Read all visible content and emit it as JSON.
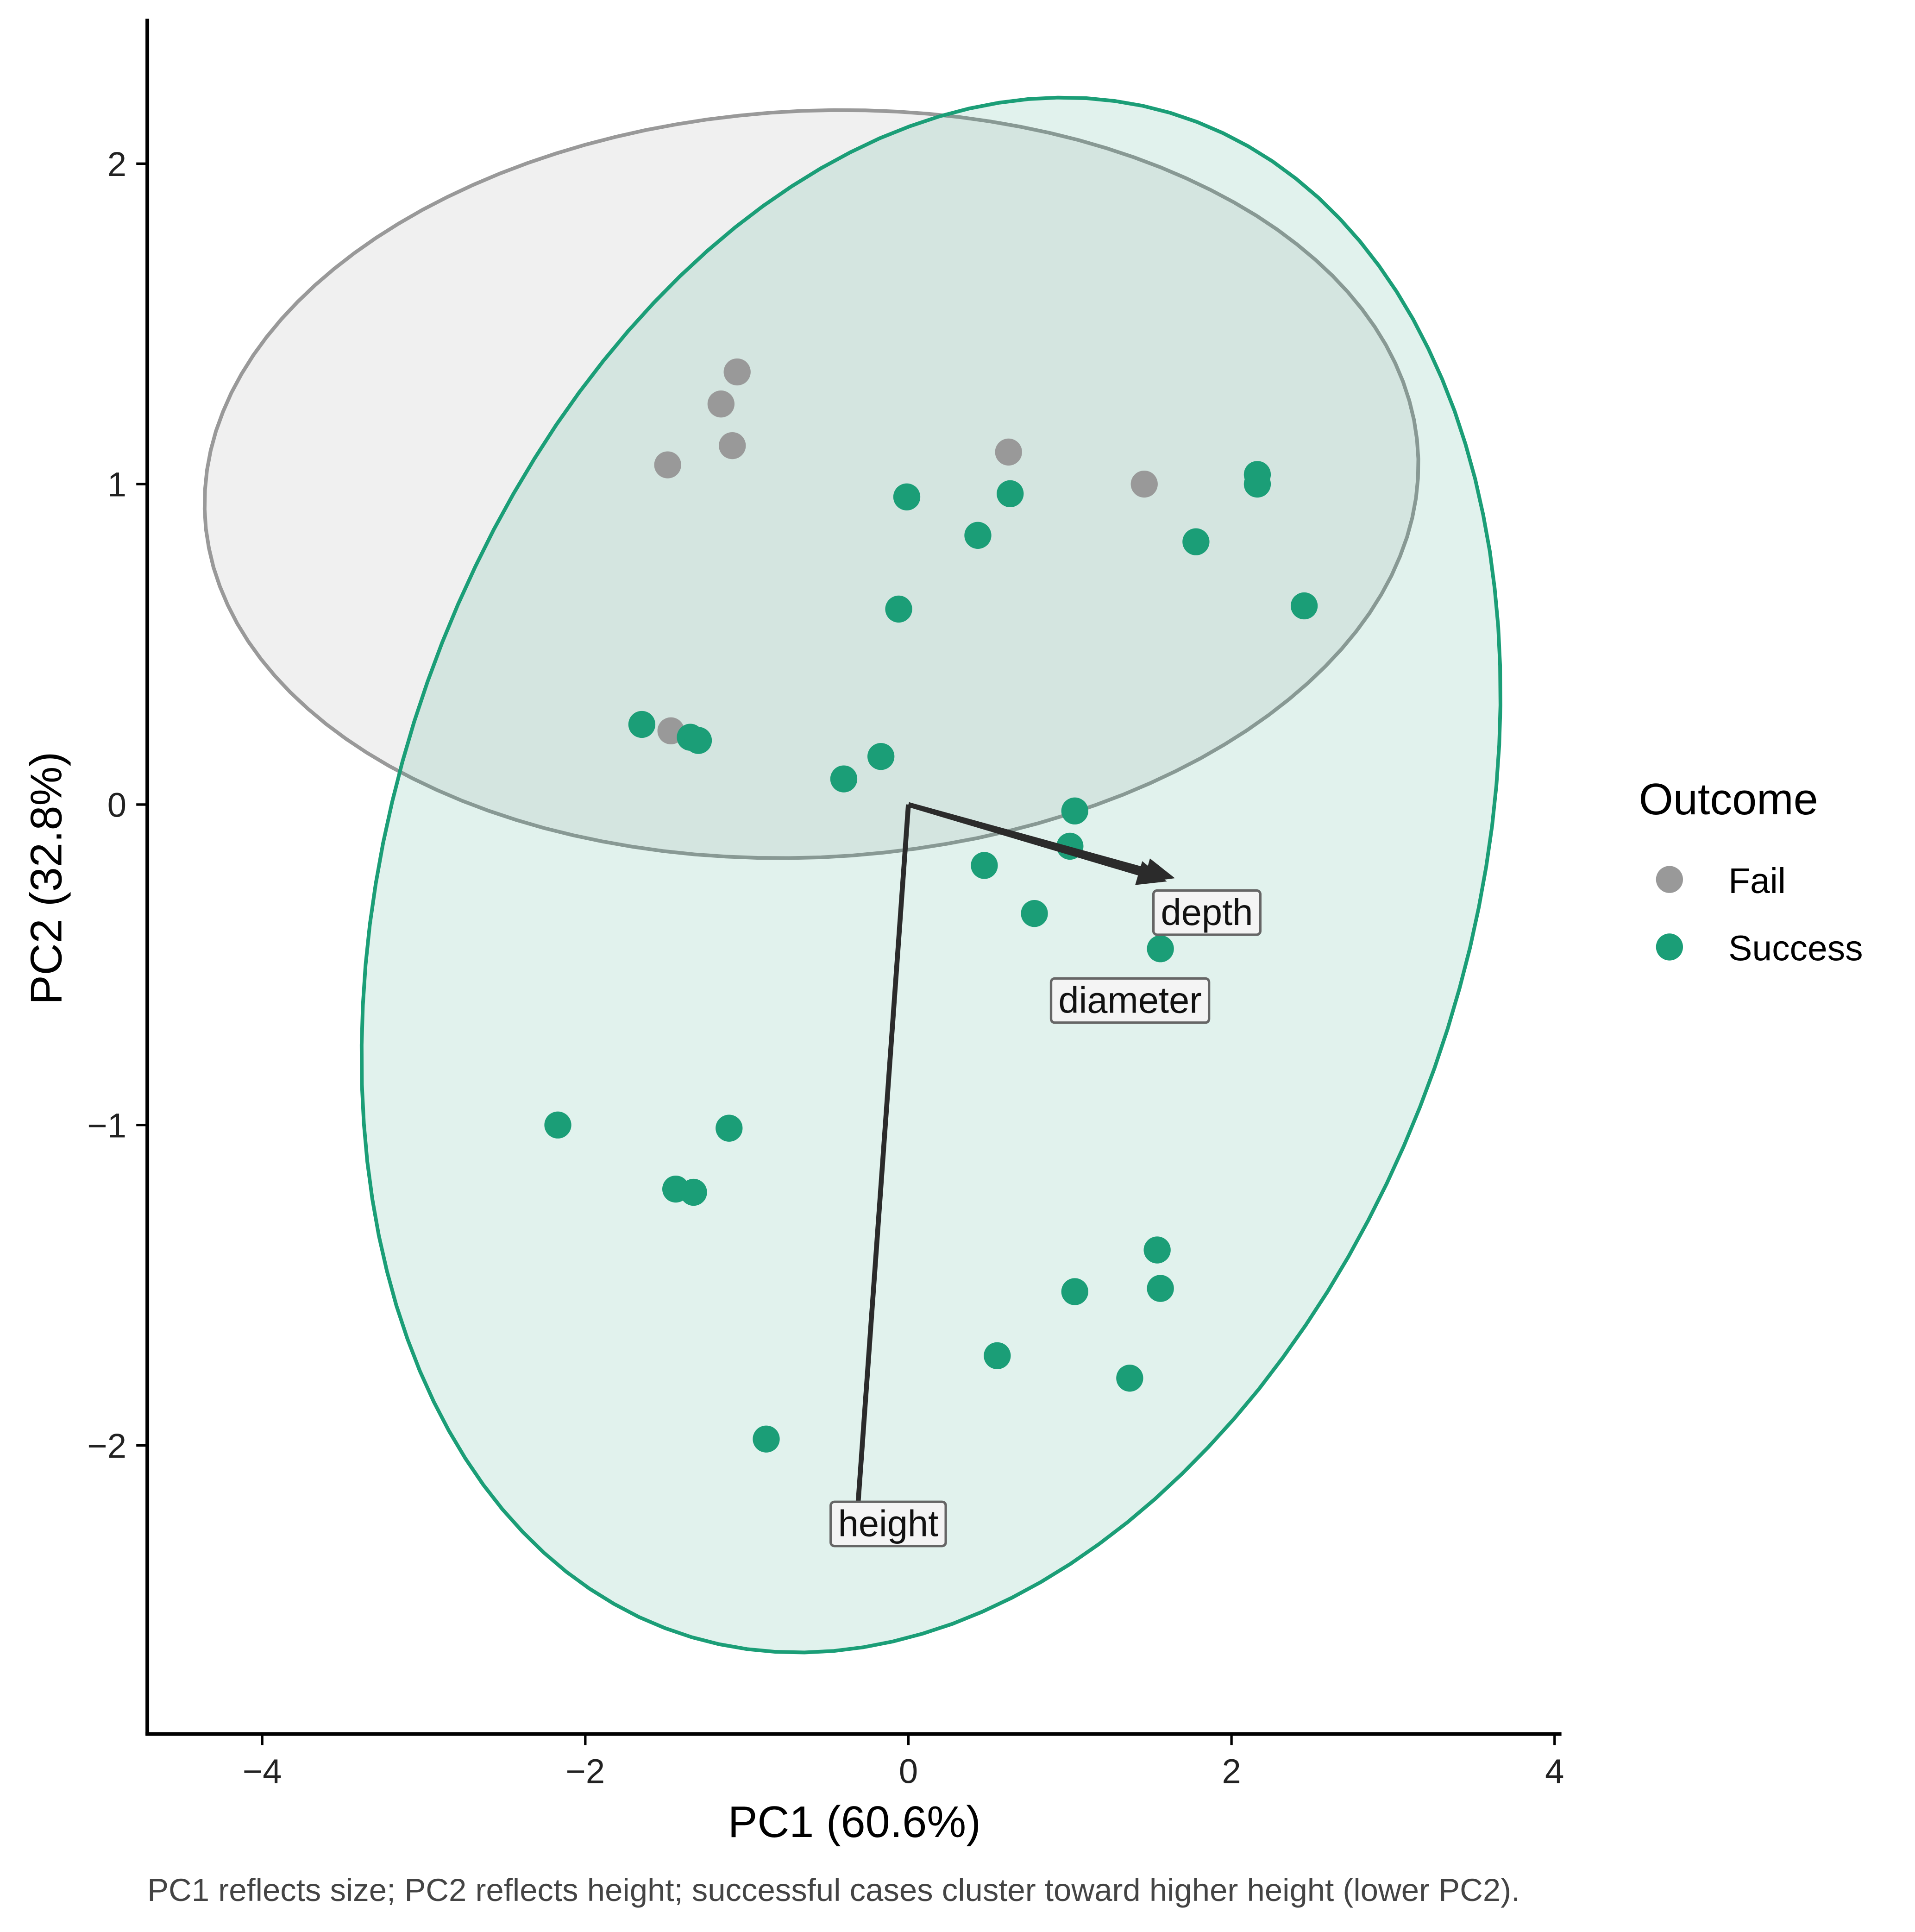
{
  "chart_data": {
    "type": "scatter",
    "title": "",
    "xlabel": "PC1 (60.6%)",
    "ylabel": "PC2 (32.8%)",
    "caption": "PC1 reflects size; PC2 reflects height; successful cases cluster toward higher height (lower PC2).",
    "xlim": [
      -4.7,
      4.05
    ],
    "ylim": [
      -2.9,
      2.45
    ],
    "x_ticks": [
      -4,
      -2,
      0,
      2,
      4
    ],
    "x_tick_labels": [
      "−4",
      "−2",
      "0",
      "2",
      "4"
    ],
    "y_ticks": [
      -2,
      -1,
      0,
      1,
      2
    ],
    "y_tick_labels": [
      "−2",
      "−1",
      "0",
      "1",
      "2"
    ],
    "grid": false,
    "legend": {
      "title": "Outcome",
      "placement": "right",
      "entries": [
        "Fail",
        "Success"
      ]
    },
    "series": [
      {
        "name": "Fail",
        "color": "#999999",
        "points": [
          [
            -1.06,
            1.35
          ],
          [
            -1.16,
            1.25
          ],
          [
            -1.09,
            1.12
          ],
          [
            -1.49,
            1.06
          ],
          [
            0.62,
            1.1
          ],
          [
            1.46,
            1.0
          ],
          [
            -1.47,
            0.23
          ]
        ]
      },
      {
        "name": "Success",
        "color": "#1b9e77",
        "points": [
          [
            2.16,
            1.03
          ],
          [
            2.16,
            1.0
          ],
          [
            -0.01,
            0.96
          ],
          [
            0.63,
            0.97
          ],
          [
            0.43,
            0.84
          ],
          [
            1.78,
            0.82
          ],
          [
            -0.06,
            0.61
          ],
          [
            2.45,
            0.62
          ],
          [
            -1.65,
            0.25
          ],
          [
            -1.35,
            0.21
          ],
          [
            -1.3,
            0.2
          ],
          [
            -0.17,
            0.15
          ],
          [
            -0.4,
            0.08
          ],
          [
            1.03,
            -0.02
          ],
          [
            1.0,
            -0.13
          ],
          [
            0.47,
            -0.19
          ],
          [
            0.78,
            -0.34
          ],
          [
            1.56,
            -0.45
          ],
          [
            -2.17,
            -1.0
          ],
          [
            -1.11,
            -1.01
          ],
          [
            -1.44,
            -1.2
          ],
          [
            -1.33,
            -1.21
          ],
          [
            1.54,
            -1.39
          ],
          [
            1.56,
            -1.51
          ],
          [
            1.03,
            -1.52
          ],
          [
            0.55,
            -1.72
          ],
          [
            1.37,
            -1.79
          ],
          [
            -0.88,
            -1.98
          ]
        ]
      }
    ],
    "ellipses": [
      {
        "group": "Fail",
        "center": [
          -0.6,
          1.0
        ],
        "axis_u": [
          3.73,
          0.2
        ],
        "axis_v": [
          -0.45,
          1.15
        ]
      },
      {
        "group": "Success",
        "center": [
          0.14,
          -0.22
        ],
        "axis_u": [
          3.5,
          0.28
        ],
        "axis_v": [
          0.42,
          2.41
        ]
      }
    ],
    "loadings": [
      {
        "label": "depth",
        "x": 1.65,
        "y": -0.23
      },
      {
        "label": "diameter",
        "x": 1.6,
        "y": -0.24
      },
      {
        "label": "height",
        "x": -0.33,
        "y": -2.31
      }
    ]
  }
}
